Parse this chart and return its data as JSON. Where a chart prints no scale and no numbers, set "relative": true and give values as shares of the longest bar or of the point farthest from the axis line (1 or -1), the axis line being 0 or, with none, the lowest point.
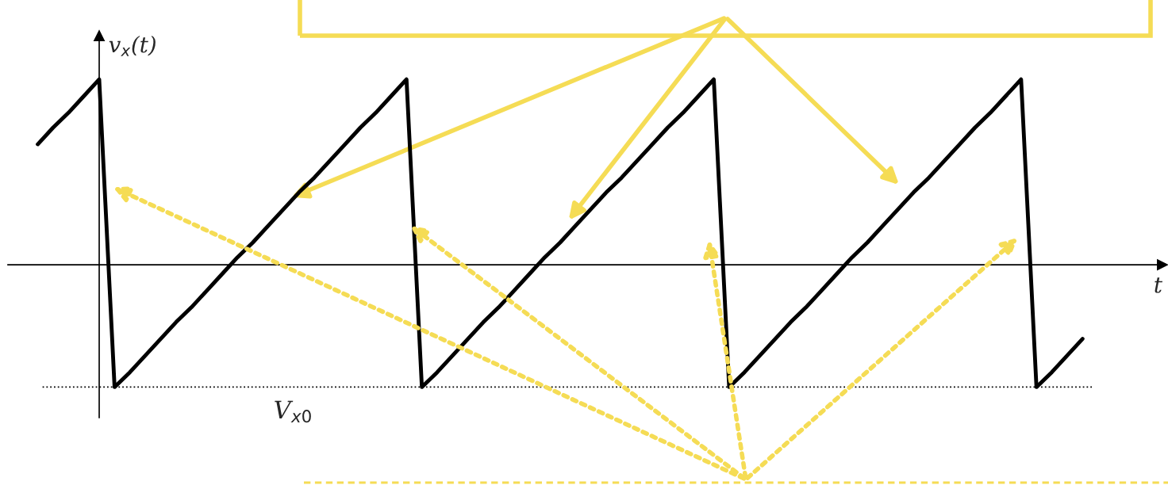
{
  "chart_data": {
    "type": "line",
    "relative": true,
    "ylabel": "v$_{x}$(t)",
    "xlabel": "t",
    "categories": [
      null,
      null,
      null,
      null,
      null,
      null,
      null,
      null,
      null,
      null,
      null,
      null,
      null,
      null,
      null,
      null,
      null,
      null,
      null,
      null,
      null,
      null,
      null,
      null,
      null,
      null,
      null,
      null,
      null,
      null,
      null,
      null,
      null,
      null,
      null,
      null,
      null,
      null,
      null,
      null,
      null,
      null,
      null,
      null,
      null,
      null,
      null,
      null,
      null,
      null,
      null,
      null,
      null,
      null,
      null,
      null,
      null,
      null,
      null,
      null,
      null,
      null,
      null,
      null,
      null,
      null,
      null,
      null,
      null
    ],
    "series": [
      {
        "color": "#000000",
        "values": [
          0.65,
          0.74,
          0.82,
          0.91,
          1,
          -0.66,
          -0.58,
          -0.49,
          -0.4,
          -0.31,
          -0.23,
          -0.14,
          -0.05,
          0.04,
          0.12,
          0.21,
          0.3,
          0.39,
          0.47,
          0.56,
          0.65,
          0.74,
          0.82,
          0.91,
          1,
          -0.66,
          -0.58,
          -0.49,
          -0.4,
          -0.31,
          -0.23,
          -0.14,
          -0.05,
          0.04,
          0.12,
          0.21,
          0.3,
          0.39,
          0.47,
          0.56,
          0.65,
          0.74,
          0.82,
          0.91,
          1,
          -0.66,
          -0.58,
          -0.49,
          -0.4,
          -0.31,
          -0.23,
          -0.14,
          -0.05,
          0.04,
          0.12,
          0.21,
          0.3,
          0.39,
          0.47,
          0.56,
          0.65,
          0.74,
          0.82,
          0.91,
          1,
          -0.66,
          -0.58,
          -0.49,
          -0.4
        ]
      }
    ],
    "ref_lines": [
      {
        "axis": "y",
        "value": -0.66,
        "label": "V$_{x0}$",
        "color": "#000000",
        "line_style": "dotted"
      }
    ]
  }
}
